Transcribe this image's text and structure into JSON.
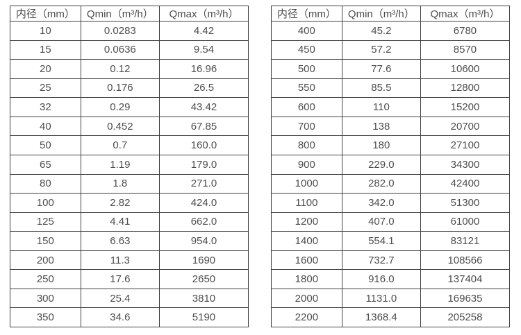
{
  "page": {
    "background_color": "#ffffff",
    "text_color": "#4d4d4f",
    "border_color": "#3f3f3f"
  },
  "tables": [
    {
      "name": "flow-table-small-diameter",
      "columns": [
        "内径（mm）",
        "Qmin（m³/h）",
        "Qmax（m³/h）"
      ],
      "rows": [
        [
          "10",
          "0.0283",
          "4.42"
        ],
        [
          "15",
          "0.0636",
          "9.54"
        ],
        [
          "20",
          "0.12",
          "16.96"
        ],
        [
          "25",
          "0.176",
          "26.5"
        ],
        [
          "32",
          "0.29",
          "43.42"
        ],
        [
          "40",
          "0.452",
          "67.85"
        ],
        [
          "50",
          "0.7",
          "160.0"
        ],
        [
          "65",
          "1.19",
          "179.0"
        ],
        [
          "80",
          "1.8",
          "271.0"
        ],
        [
          "100",
          "2.82",
          "424.0"
        ],
        [
          "125",
          "4.41",
          "662.0"
        ],
        [
          "150",
          "6.63",
          "954.0"
        ],
        [
          "200",
          "11.3",
          "1690"
        ],
        [
          "250",
          "17.6",
          "2650"
        ],
        [
          "300",
          "25.4",
          "3810"
        ],
        [
          "350",
          "34.6",
          "5190"
        ]
      ]
    },
    {
      "name": "flow-table-large-diameter",
      "columns": [
        "内径（mm）",
        "Qmin（m³/h）",
        "Qmax（m³/h）"
      ],
      "rows": [
        [
          "400",
          "45.2",
          "6780"
        ],
        [
          "450",
          "57.2",
          "8570"
        ],
        [
          "500",
          "77.6",
          "10600"
        ],
        [
          "550",
          "85.5",
          "12800"
        ],
        [
          "600",
          "110",
          "15200"
        ],
        [
          "700",
          "138",
          "20700"
        ],
        [
          "800",
          "180",
          "27100"
        ],
        [
          "900",
          "229.0",
          "34300"
        ],
        [
          "1000",
          "282.0",
          "42400"
        ],
        [
          "1100",
          "342.0",
          "51300"
        ],
        [
          "1200",
          "407.0",
          "61000"
        ],
        [
          "1400",
          "554.1",
          "83121"
        ],
        [
          "1600",
          "732.7",
          "108566"
        ],
        [
          "1800",
          "916.0",
          "137404"
        ],
        [
          "2000",
          "1131.0",
          "169635"
        ],
        [
          "2200",
          "1368.4",
          "205258"
        ]
      ]
    }
  ]
}
